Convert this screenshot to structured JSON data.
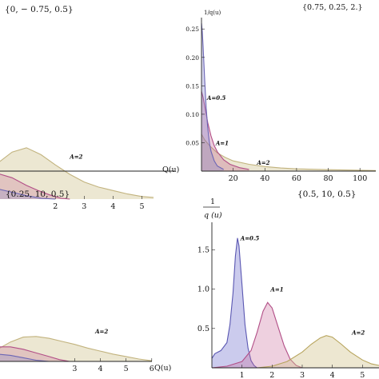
{
  "chart_data": [
    {
      "type": "area",
      "title": "{0, − 0.75, 0.5}",
      "xlabel": "Q(u)",
      "ylabel": "",
      "xlim": [
        0,
        5.4
      ],
      "ylim": [
        0,
        2.0
      ],
      "xticks": [
        "2",
        "3",
        "4",
        "5"
      ],
      "xtick_values": [
        2,
        3,
        4,
        5
      ],
      "yticks": [],
      "ytick_values": [],
      "annotations": [
        {
          "text": "A=2",
          "x": 2.5,
          "y": 0.47
        }
      ],
      "series": [
        {
          "label": "A=2",
          "color": "#c2b37e",
          "fill": "rgba(200,185,125,0.35)",
          "x": [
            0,
            0.5,
            1.0,
            1.5,
            2.0,
            2.5,
            3.0,
            3.5,
            4.0,
            4.5,
            5.0,
            5.4
          ],
          "y": [
            0.42,
            0.55,
            0.6,
            0.52,
            0.4,
            0.29,
            0.2,
            0.14,
            0.1,
            0.06,
            0.03,
            0.02
          ]
        },
        {
          "label": "A=1",
          "color": "#b24f87",
          "fill": "rgba(190,90,140,0.25)",
          "x": [
            0,
            0.5,
            1.0,
            1.4,
            1.8,
            2.2,
            2.5
          ],
          "y": [
            0.3,
            0.25,
            0.16,
            0.1,
            0.05,
            0.01,
            0.0
          ]
        },
        {
          "label": "A=0.5",
          "color": "#6b65b5",
          "fill": "rgba(120,120,200,0.25)",
          "x": [
            0,
            0.5,
            1.0,
            1.5,
            2.0
          ],
          "y": [
            0.12,
            0.08,
            0.04,
            0.01,
            0.0
          ]
        }
      ]
    },
    {
      "type": "area",
      "title": "{0.75, 0.25, 2.}",
      "xlabel": "",
      "ylabel": "1/q(u)",
      "xlim": [
        0,
        110
      ],
      "ylim": [
        0,
        0.27
      ],
      "xticks": [
        "20",
        "40",
        "60",
        "80",
        "100"
      ],
      "xtick_values": [
        20,
        40,
        60,
        80,
        100
      ],
      "yticks": [
        "0.05",
        "0.10",
        "0.15",
        "0.20",
        "0.25"
      ],
      "ytick_values": [
        0.05,
        0.1,
        0.15,
        0.2,
        0.25
      ],
      "annotations": [
        {
          "text": "A=0.5",
          "x": 3.5,
          "y": 0.125
        },
        {
          "text": "A=1",
          "x": 9,
          "y": 0.046
        },
        {
          "text": "A=2",
          "x": 35,
          "y": 0.011
        }
      ],
      "series": [
        {
          "label": "A=2",
          "color": "#c2b37e",
          "fill": "rgba(200,185,125,0.35)",
          "x": [
            0,
            2,
            5,
            10,
            15,
            20,
            30,
            40,
            50,
            60,
            80,
            100,
            110
          ],
          "y": [
            0.065,
            0.055,
            0.045,
            0.032,
            0.024,
            0.018,
            0.012,
            0.008,
            0.0055,
            0.004,
            0.0025,
            0.0015,
            0.001
          ]
        },
        {
          "label": "A=1",
          "color": "#b24f87",
          "fill": "rgba(190,90,140,0.30)",
          "x": [
            0,
            1,
            2,
            4,
            6,
            8,
            10,
            14,
            18,
            24,
            30
          ],
          "y": [
            0.14,
            0.13,
            0.115,
            0.085,
            0.062,
            0.045,
            0.034,
            0.02,
            0.012,
            0.006,
            0.003
          ]
        },
        {
          "label": "A=0.5",
          "color": "#6b65b5",
          "fill": "rgba(120,120,200,0.30)",
          "x": [
            0,
            0.5,
            1,
            1.5,
            2,
            3,
            4,
            5,
            6,
            8,
            10,
            14
          ],
          "y": [
            0.26,
            0.245,
            0.22,
            0.19,
            0.16,
            0.11,
            0.075,
            0.05,
            0.035,
            0.018,
            0.009,
            0.003
          ]
        }
      ]
    },
    {
      "type": "area",
      "title": "{0.25, 10, 0.5}",
      "xlabel": "Q(u)",
      "ylabel": "",
      "xlim": [
        0,
        6.1
      ],
      "ylim": [
        0,
        1.0
      ],
      "xticks": [
        "3",
        "4",
        "5",
        "6"
      ],
      "xtick_values": [
        3,
        4,
        5,
        6
      ],
      "yticks": [],
      "ytick_values": [],
      "annotations": [
        {
          "text": "A=2",
          "x": 3.8,
          "y": 0.23
        }
      ],
      "series": [
        {
          "label": "A=2",
          "color": "#c2b37e",
          "fill": "rgba(200,185,125,0.35)",
          "x": [
            0,
            0.5,
            1.0,
            1.5,
            2.0,
            2.5,
            3.0,
            3.5,
            4.0,
            4.5,
            5.0,
            5.5,
            6.0
          ],
          "y": [
            0.1,
            0.16,
            0.2,
            0.205,
            0.19,
            0.165,
            0.14,
            0.11,
            0.085,
            0.06,
            0.04,
            0.02,
            0.005
          ]
        },
        {
          "label": "A=1",
          "color": "#b24f87",
          "fill": "rgba(190,90,140,0.25)",
          "x": [
            0,
            0.5,
            1.0,
            1.5,
            2.0,
            2.4,
            2.8
          ],
          "y": [
            0.12,
            0.12,
            0.1,
            0.07,
            0.04,
            0.015,
            0.0
          ]
        },
        {
          "label": "A=0.5",
          "color": "#6b65b5",
          "fill": "rgba(120,120,200,0.25)",
          "x": [
            0,
            0.5,
            1.0,
            1.5,
            2.0
          ],
          "y": [
            0.06,
            0.05,
            0.03,
            0.01,
            0.0
          ]
        }
      ]
    },
    {
      "type": "area",
      "title": "{0.5, 10, 0.5}",
      "xlabel": "",
      "ylabel": "1 / q (u)",
      "xlim": [
        0,
        5.55
      ],
      "ylim": [
        0,
        1.85
      ],
      "xticks": [
        "1",
        "2",
        "3",
        "4",
        "5"
      ],
      "xtick_values": [
        1,
        2,
        3,
        4,
        5
      ],
      "yticks": [
        "0.5",
        "1.0",
        "1.5"
      ],
      "ytick_values": [
        0.5,
        1.0,
        1.5
      ],
      "annotations": [
        {
          "text": "A=0.5",
          "x": 0.95,
          "y": 1.62
        },
        {
          "text": "A=1",
          "x": 1.95,
          "y": 0.97
        },
        {
          "text": "A=2",
          "x": 4.65,
          "y": 0.42
        }
      ],
      "series": [
        {
          "label": "A=0.5",
          "color": "#5a57b2",
          "fill": "rgba(125,125,210,0.40)",
          "x": [
            0,
            0.1,
            0.3,
            0.5,
            0.6,
            0.7,
            0.78,
            0.85,
            0.9,
            1.0,
            1.1,
            1.2,
            1.3,
            1.4,
            1.5
          ],
          "y": [
            0.12,
            0.18,
            0.22,
            0.32,
            0.55,
            0.95,
            1.42,
            1.65,
            1.55,
            1.05,
            0.55,
            0.25,
            0.09,
            0.03,
            0.0
          ]
        },
        {
          "label": "A=1",
          "color": "#b24f87",
          "fill": "rgba(200,100,150,0.30)",
          "x": [
            0,
            0.5,
            1.0,
            1.3,
            1.5,
            1.7,
            1.85,
            2.0,
            2.2,
            2.4,
            2.6,
            2.8,
            3.0
          ],
          "y": [
            0.0,
            0.02,
            0.08,
            0.22,
            0.45,
            0.72,
            0.83,
            0.76,
            0.52,
            0.28,
            0.11,
            0.03,
            0.0
          ]
        },
        {
          "label": "A=2",
          "color": "#b7a45c",
          "fill": "rgba(210,195,140,0.40)",
          "x": [
            0,
            1.5,
            2.0,
            2.5,
            3.0,
            3.3,
            3.6,
            3.8,
            4.0,
            4.3,
            4.6,
            5.0,
            5.3,
            5.55
          ],
          "y": [
            0.0,
            0.0,
            0.02,
            0.08,
            0.2,
            0.3,
            0.38,
            0.41,
            0.39,
            0.3,
            0.2,
            0.1,
            0.05,
            0.03
          ]
        }
      ]
    }
  ]
}
